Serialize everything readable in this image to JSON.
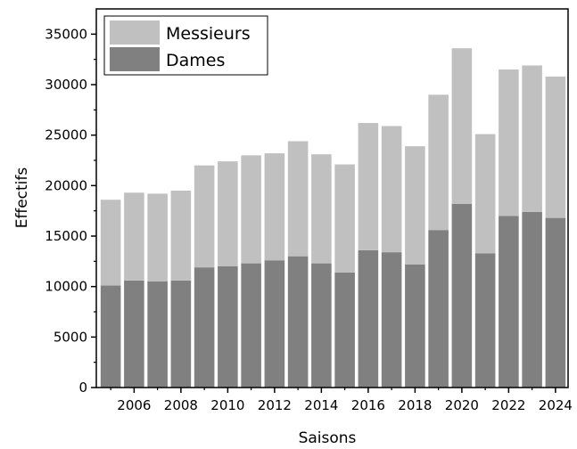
{
  "chart_data": {
    "type": "bar",
    "stacked": true,
    "categories": [
      2005,
      2006,
      2007,
      2008,
      2009,
      2010,
      2011,
      2012,
      2013,
      2014,
      2015,
      2016,
      2017,
      2018,
      2019,
      2020,
      2021,
      2022,
      2023,
      2024
    ],
    "series": [
      {
        "name": "Dames",
        "color": "#808080",
        "values": [
          10100,
          10600,
          10500,
          10600,
          11900,
          12000,
          12300,
          12600,
          13000,
          12300,
          11400,
          13600,
          13400,
          12200,
          15600,
          18200,
          13300,
          17000,
          17400,
          16800
        ]
      },
      {
        "name": "Messieurs",
        "color": "#c0c0c0",
        "values": [
          8500,
          8700,
          8700,
          8900,
          10100,
          10400,
          10700,
          10600,
          11400,
          10800,
          10700,
          12600,
          12500,
          11700,
          13400,
          15400,
          11800,
          14500,
          14500,
          14000
        ]
      }
    ],
    "xlabel": "Saisons",
    "ylabel": "Effectifs",
    "ylim": [
      0,
      37500
    ],
    "yticks": [
      0,
      5000,
      10000,
      15000,
      20000,
      25000,
      30000,
      35000
    ],
    "ytick_labels": [
      "0",
      "5000",
      "10000",
      "15000",
      "20000",
      "25000",
      "30000",
      "35000"
    ],
    "xticks": [
      2006,
      2008,
      2010,
      2012,
      2014,
      2016,
      2018,
      2020,
      2022,
      2024
    ],
    "xtick_labels": [
      "2006",
      "2008",
      "2010",
      "2012",
      "2014",
      "2016",
      "2018",
      "2020",
      "2022",
      "2024"
    ],
    "legend": {
      "position": "top-left",
      "entries": [
        "Messieurs",
        "Dames"
      ]
    },
    "grid": false
  }
}
